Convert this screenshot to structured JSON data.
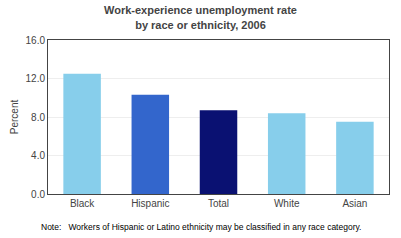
{
  "chart_data": {
    "type": "bar",
    "title": "Work-experience unemployment rate",
    "subtitle": "by race or ethnicity, 2006",
    "ylabel": "Percent",
    "categories": [
      "Black",
      "Hispanic",
      "Total",
      "White",
      "Asian"
    ],
    "values": [
      12.5,
      10.3,
      8.7,
      8.4,
      7.5
    ],
    "colors": [
      "#87CEEB",
      "#3366CC",
      "#0A1172",
      "#87CEEB",
      "#87CEEB"
    ],
    "ylim": [
      0,
      16.0
    ],
    "yticks": [
      {
        "value": 0.0,
        "label": "0.0"
      },
      {
        "value": 4.0,
        "label": "4.0"
      },
      {
        "value": 8.0,
        "label": "8.0"
      },
      {
        "value": 12.0,
        "label": "12.0"
      },
      {
        "value": 16.0,
        "label": "16.0"
      }
    ],
    "grid": true,
    "annotations": [
      "Note:   Workers of Hispanic or Latino ethnicity may be classified in any race category."
    ]
  }
}
